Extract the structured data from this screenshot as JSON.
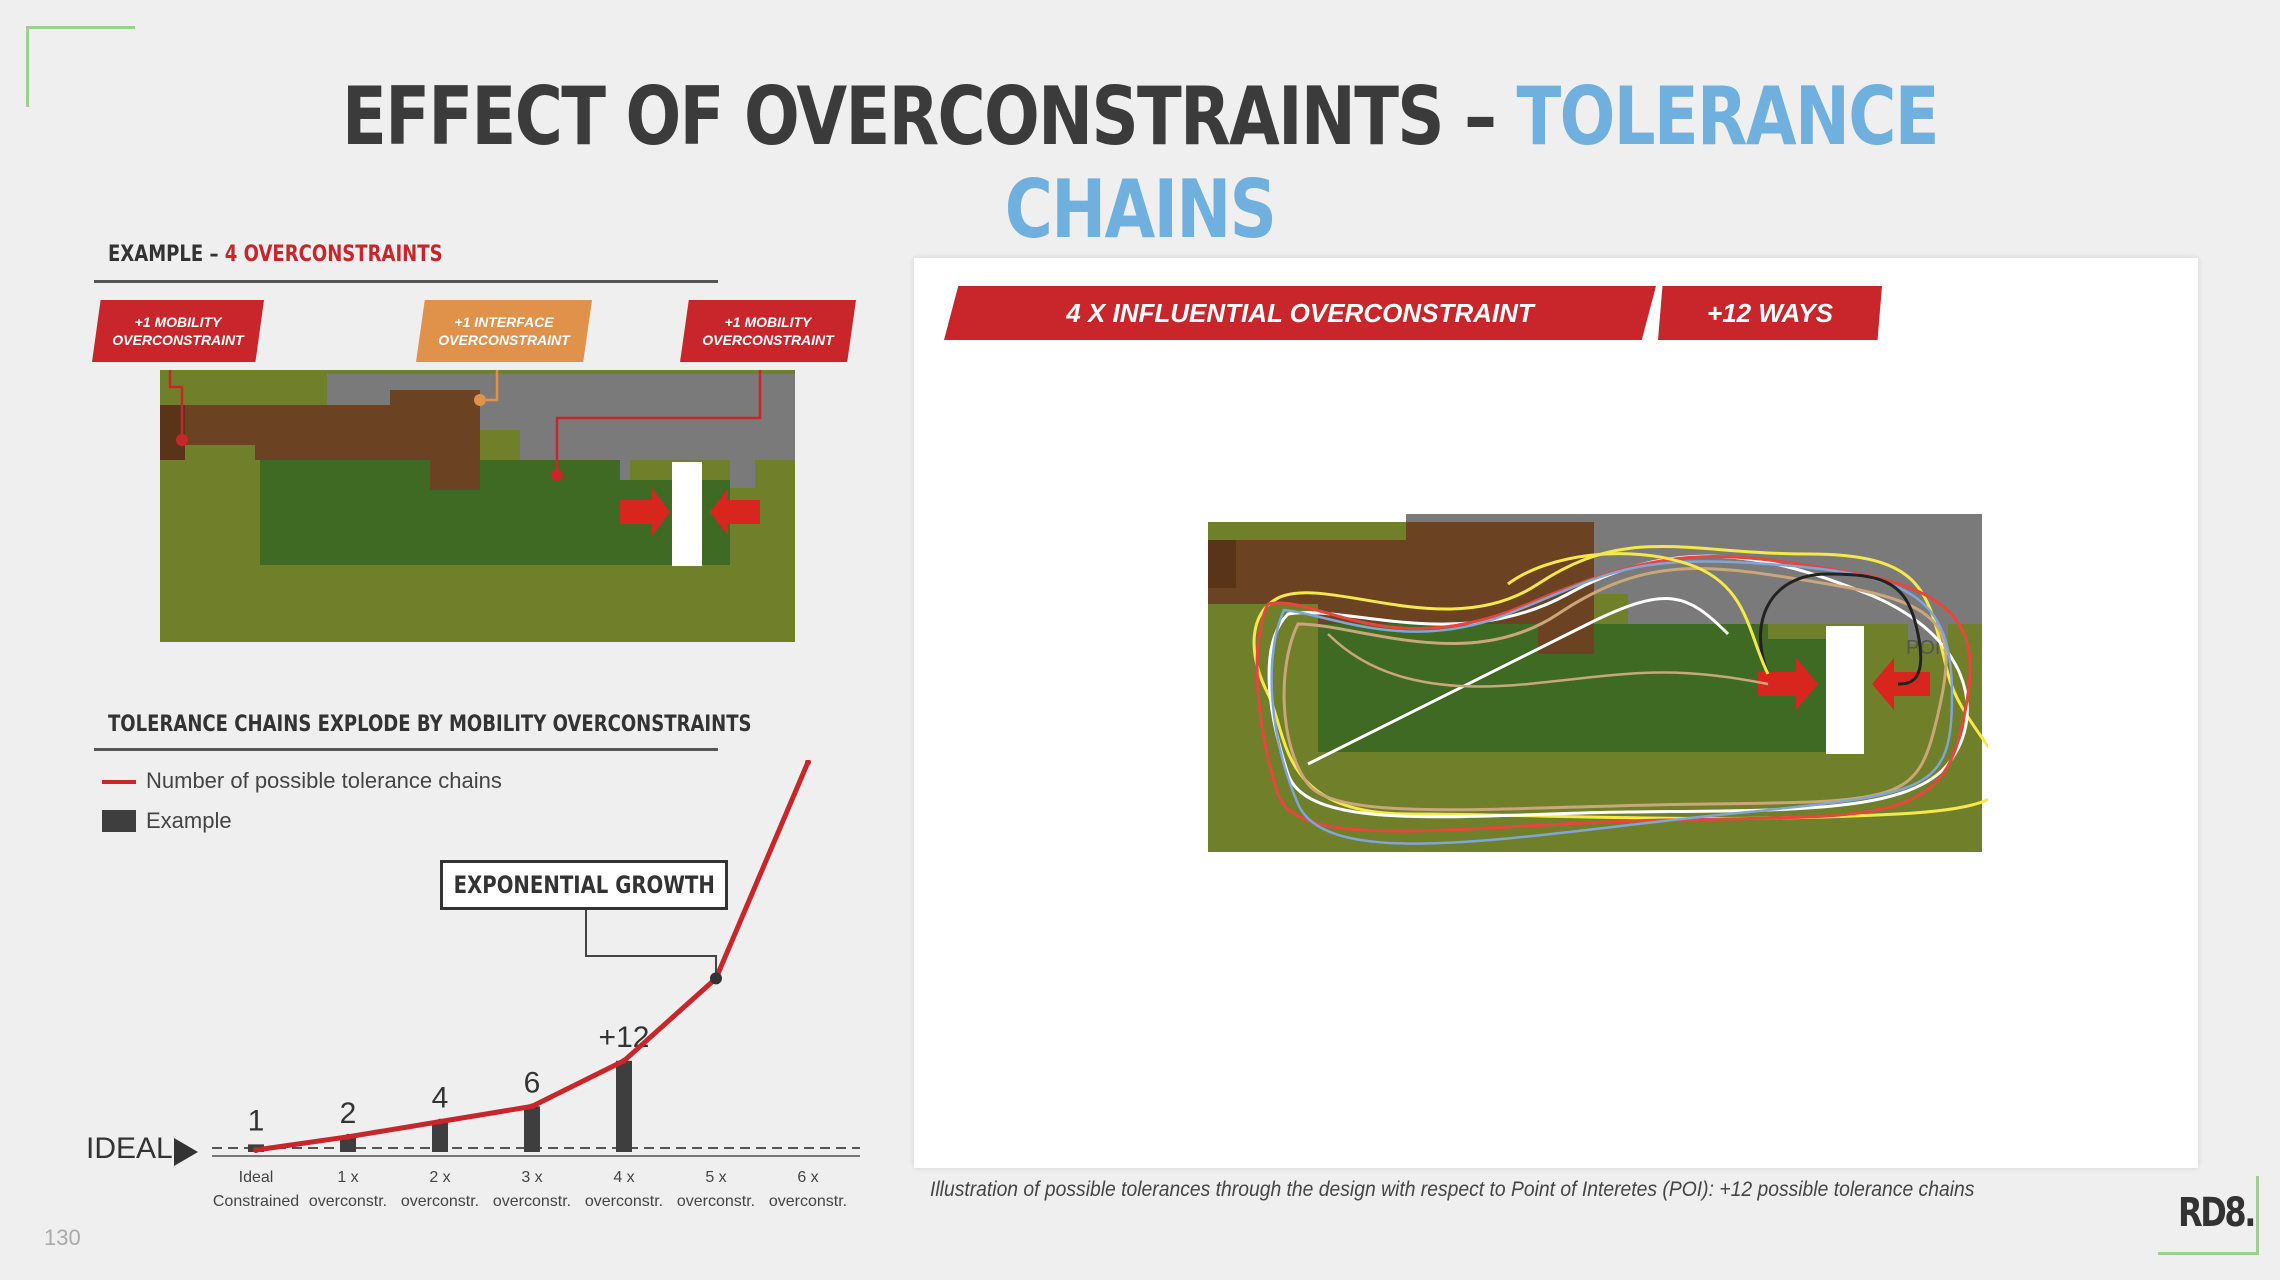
{
  "slide": {
    "title_main": "EFFECT OF OVERCONSTRAINTS – ",
    "title_accent": "TOLERANCE CHAINS",
    "page_number": "130",
    "logo": "RD8."
  },
  "example": {
    "heading_prefix": "EXAMPLE – ",
    "heading_highlight": "4 OVERCONSTRAINTS",
    "tags": [
      {
        "line1": "+1 MOBILITY",
        "line2": "OVERCONSTRAINT",
        "color": "#c8262b"
      },
      {
        "line1": "+1 INTERFACE",
        "line2": "OVERCONSTRAINT",
        "color": "#e0914a"
      },
      {
        "line1": "+1 MOBILITY",
        "line2": "OVERCONSTRAINT",
        "color": "#c8262b"
      }
    ]
  },
  "tolerance": {
    "heading": "TOLERANCE CHAINS EXPLODE BY MOBILITY OVERCONSTRAINTS",
    "legend_line": "Number of possible tolerance chains",
    "legend_box": "Example",
    "callout": "EXPONENTIAL GROWTH",
    "ideal_label": "IDEAL"
  },
  "chart_data": {
    "type": "bar",
    "categories": [
      [
        "Ideal",
        "Constrained"
      ],
      [
        "1 x",
        "overconstr."
      ],
      [
        "2 x",
        "overconstr."
      ],
      [
        "3 x",
        "overconstr."
      ],
      [
        "4 x",
        "overconstr."
      ],
      [
        "5 x",
        "overconstr."
      ],
      [
        "6 x",
        "overconstr."
      ]
    ],
    "bar_values": [
      1,
      2,
      4,
      6,
      12
    ],
    "bar_labels": [
      "1",
      "2",
      "4",
      "6",
      "+12"
    ],
    "line_values": [
      1,
      2,
      4,
      6,
      12,
      20,
      41
    ],
    "line_color": "#c8262b",
    "bar_color": "#3e3e3e",
    "ylim": [
      0,
      42
    ]
  },
  "illustration": {
    "banner_main": "4 X INFLUENTIAL OVERCONSTRAINT",
    "banner_side": "+12 WAYS",
    "poi_label": "POI",
    "caption": "Illustration of possible tolerances through the design with respect to Point of Interetes (POI): +12 possible tolerance chains"
  }
}
